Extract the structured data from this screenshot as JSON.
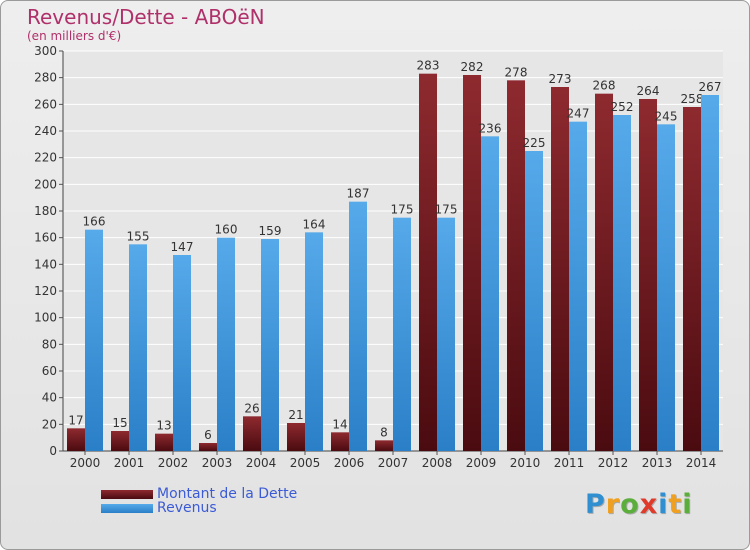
{
  "chart_data": {
    "type": "bar",
    "title": "Revenus/Dette - ABOëN",
    "subtitle": "(en milliers d'€)",
    "categories": [
      "2000",
      "2001",
      "2002",
      "2003",
      "2004",
      "2005",
      "2006",
      "2007",
      "2008",
      "2009",
      "2010",
      "2011",
      "2012",
      "2013",
      "2014"
    ],
    "series": [
      {
        "name": "Montant de la Dette",
        "color": "#7a1f24",
        "values": [
          17,
          15,
          13,
          6,
          26,
          21,
          14,
          8,
          283,
          282,
          278,
          273,
          268,
          264,
          258
        ]
      },
      {
        "name": "Revenus",
        "color": "#3a93dd",
        "values": [
          166,
          155,
          147,
          160,
          159,
          164,
          187,
          175,
          175,
          236,
          225,
          247,
          252,
          245,
          267
        ]
      }
    ],
    "ylim": [
      0,
      300
    ],
    "yticks": [
      0,
      20,
      40,
      60,
      80,
      100,
      120,
      140,
      160,
      180,
      200,
      220,
      240,
      260,
      280,
      300
    ],
    "grid": true,
    "legend_position": "bottom-left"
  },
  "logo": {
    "letters": [
      {
        "ch": "P",
        "color": "#2f8fd0"
      },
      {
        "ch": "r",
        "color": "#f0a020"
      },
      {
        "ch": "o",
        "color": "#5cae3c"
      },
      {
        "ch": "x",
        "color": "#e03a2a"
      },
      {
        "ch": "i",
        "color": "#2f8fd0"
      },
      {
        "ch": "t",
        "color": "#f0a020"
      },
      {
        "ch": "i",
        "color": "#5cae3c"
      }
    ]
  }
}
